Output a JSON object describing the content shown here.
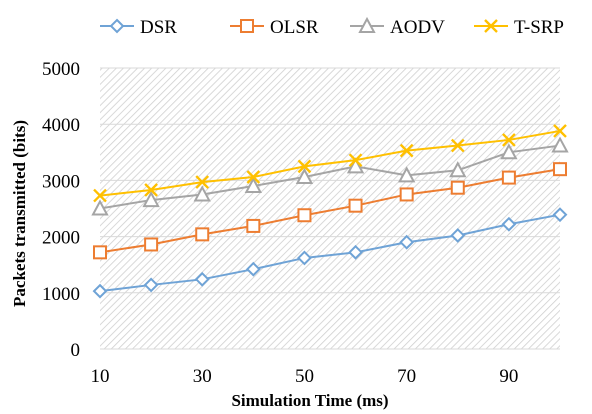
{
  "chart_data": {
    "type": "line",
    "title": "",
    "xlabel": "Simulation Time (ms)",
    "ylabel": "Packets transmitted (bits)",
    "x": [
      10,
      20,
      30,
      40,
      50,
      60,
      70,
      80,
      90,
      100
    ],
    "x_tick_labels": [
      "10",
      "30",
      "50",
      "70",
      "90"
    ],
    "x_tick_values": [
      10,
      30,
      50,
      70,
      90
    ],
    "xlim": [
      10,
      100
    ],
    "y_tick_labels": [
      "0",
      "1000",
      "2000",
      "3000",
      "4000",
      "5000"
    ],
    "y_tick_values": [
      0,
      1000,
      2000,
      3000,
      4000,
      5000
    ],
    "ylim": [
      0,
      5000
    ],
    "grid": "horizontal",
    "plot_background": "diagonal-hatch",
    "legend_position": "top",
    "series": [
      {
        "name": "DSR",
        "color": "#6fa3d6",
        "marker": "diamond",
        "values": [
          1030,
          1140,
          1240,
          1420,
          1620,
          1720,
          1900,
          2020,
          2220,
          2390
        ]
      },
      {
        "name": "OLSR",
        "color": "#ed7d31",
        "marker": "square",
        "values": [
          1720,
          1860,
          2040,
          2190,
          2380,
          2550,
          2750,
          2870,
          3050,
          3200
        ]
      },
      {
        "name": "AODV",
        "color": "#a5a5a5",
        "marker": "triangle",
        "values": [
          2500,
          2650,
          2750,
          2900,
          3060,
          3250,
          3090,
          3180,
          3500,
          3620
        ]
      },
      {
        "name": "T-SRP",
        "color": "#ffc000",
        "marker": "x",
        "values": [
          2730,
          2830,
          2970,
          3060,
          3250,
          3360,
          3530,
          3620,
          3720,
          3880
        ]
      }
    ]
  }
}
